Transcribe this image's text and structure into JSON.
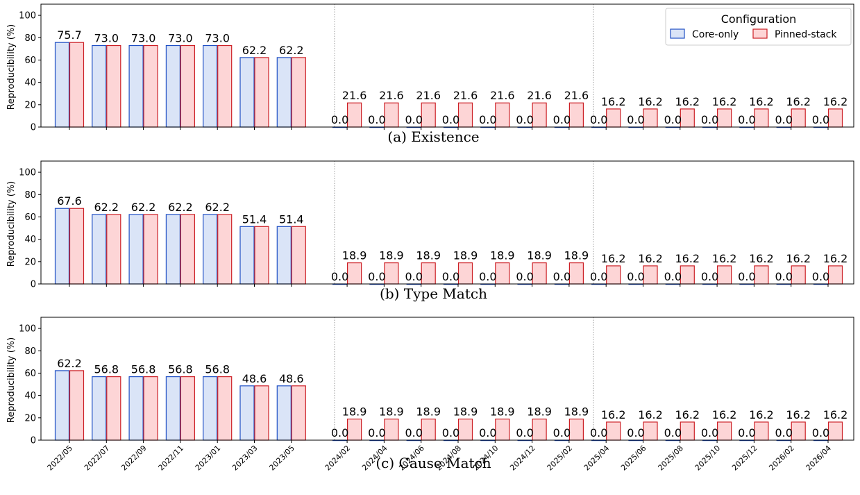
{
  "chart_data": [
    {
      "type": "bar",
      "caption": "(a) Existence",
      "ylabel": "Reproducibility (%)",
      "ylim": [
        0,
        110
      ],
      "yticks": [
        0,
        20,
        40,
        60,
        80,
        100
      ],
      "categories": [
        "2022/05",
        "2022/07",
        "2022/09",
        "2022/11",
        "2023/01",
        "2023/03",
        "2023/05",
        "2024/02",
        "2024/04",
        "2024/06",
        "2024/08",
        "2024/10",
        "2024/12",
        "2025/02",
        "2025/04",
        "2025/06",
        "2025/08",
        "2025/10",
        "2025/12",
        "2026/02",
        "2026/04"
      ],
      "series": [
        {
          "name": "Core-only",
          "values": [
            75.7,
            73.0,
            73.0,
            73.0,
            73.0,
            62.2,
            62.2,
            0.0,
            0.0,
            0.0,
            0.0,
            0.0,
            0.0,
            0.0,
            0.0,
            0.0,
            0.0,
            0.0,
            0.0,
            0.0,
            0.0
          ]
        },
        {
          "name": "Pinned-stack",
          "values": [
            75.7,
            73.0,
            73.0,
            73.0,
            73.0,
            62.2,
            62.2,
            21.6,
            21.6,
            21.6,
            21.6,
            21.6,
            21.6,
            21.6,
            16.2,
            16.2,
            16.2,
            16.2,
            16.2,
            16.2,
            16.2
          ]
        }
      ],
      "grid": false,
      "legend": {
        "title": "Configuration",
        "placement": "top-right"
      }
    },
    {
      "type": "bar",
      "caption": "(b) Type Match",
      "ylabel": "Reproducibility (%)",
      "ylim": [
        0,
        110
      ],
      "yticks": [
        0,
        20,
        40,
        60,
        80,
        100
      ],
      "categories": [
        "2022/05",
        "2022/07",
        "2022/09",
        "2022/11",
        "2023/01",
        "2023/03",
        "2023/05",
        "2024/02",
        "2024/04",
        "2024/06",
        "2024/08",
        "2024/10",
        "2024/12",
        "2025/02",
        "2025/04",
        "2025/06",
        "2025/08",
        "2025/10",
        "2025/12",
        "2026/02",
        "2026/04"
      ],
      "series": [
        {
          "name": "Core-only",
          "values": [
            67.6,
            62.2,
            62.2,
            62.2,
            62.2,
            51.4,
            51.4,
            0.0,
            0.0,
            0.0,
            0.0,
            0.0,
            0.0,
            0.0,
            0.0,
            0.0,
            0.0,
            0.0,
            0.0,
            0.0,
            0.0
          ]
        },
        {
          "name": "Pinned-stack",
          "values": [
            67.6,
            62.2,
            62.2,
            62.2,
            62.2,
            51.4,
            51.4,
            18.9,
            18.9,
            18.9,
            18.9,
            18.9,
            18.9,
            18.9,
            16.2,
            16.2,
            16.2,
            16.2,
            16.2,
            16.2,
            16.2
          ]
        }
      ],
      "grid": false
    },
    {
      "type": "bar",
      "caption": "(c) Cause Match",
      "ylabel": "Reproducibility (%)",
      "ylim": [
        0,
        110
      ],
      "yticks": [
        0,
        20,
        40,
        60,
        80,
        100
      ],
      "categories": [
        "2022/05",
        "2022/07",
        "2022/09",
        "2022/11",
        "2023/01",
        "2023/03",
        "2023/05",
        "2024/02",
        "2024/04",
        "2024/06",
        "2024/08",
        "2024/10",
        "2024/12",
        "2025/02",
        "2025/04",
        "2025/06",
        "2025/08",
        "2025/10",
        "2025/12",
        "2026/02",
        "2026/04"
      ],
      "series": [
        {
          "name": "Core-only",
          "values": [
            62.2,
            56.8,
            56.8,
            56.8,
            56.8,
            48.6,
            48.6,
            0.0,
            0.0,
            0.0,
            0.0,
            0.0,
            0.0,
            0.0,
            0.0,
            0.0,
            0.0,
            0.0,
            0.0,
            0.0,
            0.0
          ]
        },
        {
          "name": "Pinned-stack",
          "values": [
            62.2,
            56.8,
            56.8,
            56.8,
            56.8,
            48.6,
            48.6,
            18.9,
            18.9,
            18.9,
            18.9,
            18.9,
            18.9,
            18.9,
            16.2,
            16.2,
            16.2,
            16.2,
            16.2,
            16.2,
            16.2
          ]
        }
      ],
      "grid": false
    }
  ],
  "style": {
    "core_fill": "#dae4f7",
    "core_edge": "#1f4fc4",
    "pinned_fill": "#fdd5d6",
    "pinned_edge": "#cc1f25",
    "separator_color": "#999999"
  }
}
